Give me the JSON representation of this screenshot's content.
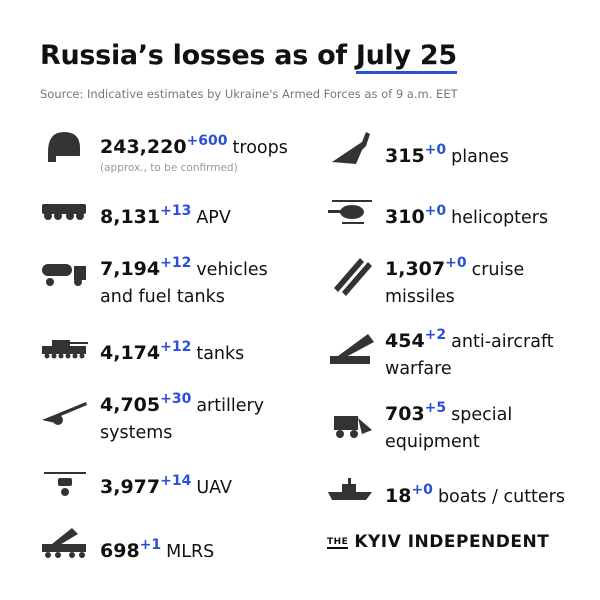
{
  "header": {
    "title_prefix": "Russia’s losses as of",
    "title_date": "July 25",
    "source": "Source: Indicative estimates by Ukraine's Armed Forces as of 9 a.m. EET"
  },
  "left": [
    {
      "value": "243,220",
      "delta": "+600",
      "label": "troops",
      "note": "(approx., to be confirmed)"
    },
    {
      "value": "8,131",
      "delta": "+13",
      "label": "APV"
    },
    {
      "value": "7,194",
      "delta": "+12",
      "label": "vehicles and fuel tanks"
    },
    {
      "value": "4,174",
      "delta": "+12",
      "label": "tanks"
    },
    {
      "value": "4,705",
      "delta": "+30",
      "label": "artillery systems"
    },
    {
      "value": "3,977",
      "delta": "+14",
      "label": "UAV"
    },
    {
      "value": "698",
      "delta": "+1",
      "label": "MLRS"
    }
  ],
  "right": [
    {
      "value": "315",
      "delta": "+0",
      "label": "planes"
    },
    {
      "value": "310",
      "delta": "+0",
      "label": "helicopters"
    },
    {
      "value": "1,307",
      "delta": "+0",
      "label": "cruise missiles"
    },
    {
      "value": "454",
      "delta": "+2",
      "label": "anti-aircraft warfare"
    },
    {
      "value": "703",
      "delta": "+5",
      "label": "special equipment"
    },
    {
      "value": "18",
      "delta": "+0",
      "label": "boats / cutters"
    }
  ],
  "brand": {
    "prefix": "THE",
    "name": "KYIV INDEPENDENT"
  }
}
